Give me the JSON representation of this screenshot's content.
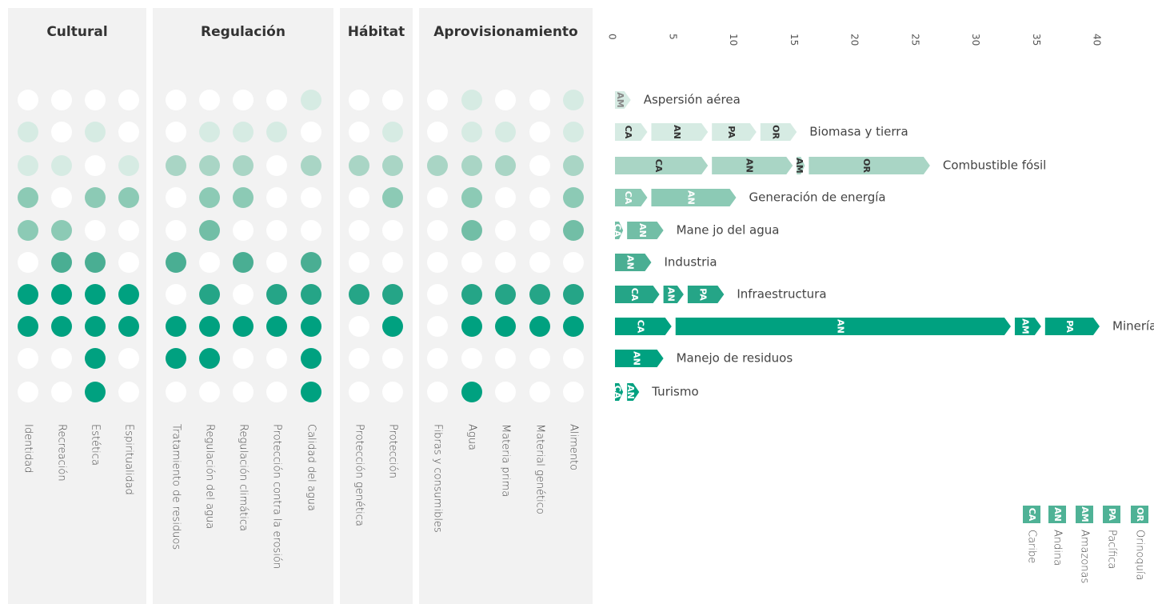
{
  "matrix": {
    "groups": [
      {
        "title": "Cultural",
        "services": [
          "Identidad",
          "Recreación",
          "Estética",
          "Espiritualidad"
        ]
      },
      {
        "title": "Regulación",
        "services": [
          "Tratamiento de residuos",
          "Regulación del agua",
          "Regulación climática",
          "Protección contra la erosión",
          "Calidad del agua"
        ]
      },
      {
        "title": "Hábitat",
        "services": [
          "Protección genética",
          "Protección"
        ]
      },
      {
        "title": "Aprovisionamiento",
        "services": [
          "Fibras y consumibles",
          "Agua",
          "Materia prima",
          "Material genético",
          "Alimento"
        ]
      }
    ],
    "palette": [
      "#ffffff",
      "#d6ebe3",
      "#a9d5c5",
      "#8ccab5",
      "#72bea6",
      "#4aae93",
      "#25a587",
      "#00a180"
    ],
    "levels": [
      [
        0,
        0,
        0,
        0,
        0,
        0,
        0,
        0,
        1,
        0,
        0,
        0,
        1,
        0,
        0,
        1
      ],
      [
        1,
        0,
        1,
        0,
        0,
        1,
        1,
        1,
        0,
        0,
        1,
        0,
        1,
        1,
        0,
        1
      ],
      [
        1,
        1,
        0,
        1,
        2,
        2,
        2,
        0,
        2,
        2,
        2,
        2,
        2,
        2,
        0,
        2
      ],
      [
        3,
        0,
        3,
        3,
        0,
        3,
        3,
        0,
        0,
        0,
        3,
        0,
        3,
        0,
        0,
        3
      ],
      [
        3,
        3,
        0,
        0,
        0,
        4,
        0,
        0,
        0,
        0,
        0,
        0,
        4,
        0,
        0,
        4
      ],
      [
        0,
        5,
        5,
        0,
        5,
        0,
        5,
        0,
        5,
        0,
        0,
        0,
        0,
        0,
        0,
        0
      ],
      [
        7,
        7,
        7,
        7,
        0,
        6,
        0,
        6,
        6,
        6,
        6,
        0,
        6,
        6,
        6,
        6
      ],
      [
        7,
        7,
        7,
        7,
        7,
        7,
        7,
        7,
        7,
        0,
        7,
        0,
        7,
        7,
        7,
        7
      ],
      [
        0,
        0,
        7,
        0,
        7,
        7,
        0,
        0,
        7,
        0,
        0,
        0,
        0,
        0,
        0,
        0
      ],
      [
        0,
        0,
        7,
        0,
        0,
        0,
        0,
        0,
        7,
        0,
        0,
        0,
        7,
        0,
        0,
        0
      ]
    ]
  },
  "chart_data": {
    "type": "stacked-arrow-bar",
    "xlim": [
      0,
      40
    ],
    "xticks": [
      0,
      5,
      10,
      15,
      20,
      25,
      30,
      35,
      40
    ],
    "row_colors": [
      "#d6ebe3",
      "#d6ebe3",
      "#a9d5c5",
      "#8ccab5",
      "#72bea6",
      "#4aae93",
      "#25a587",
      "#00a180",
      "#00a180",
      "#00a180"
    ],
    "drivers": [
      {
        "name": "Aspersión aérea",
        "segments": [
          {
            "code": "AM",
            "value": 1.3
          }
        ]
      },
      {
        "name": "Biomasa y tierra",
        "segments": [
          {
            "code": "CA",
            "value": 3
          },
          {
            "code": "AN",
            "value": 5
          },
          {
            "code": "PA",
            "value": 4
          },
          {
            "code": "OR",
            "value": 3
          }
        ]
      },
      {
        "name": "Combustible fósil",
        "segments": [
          {
            "code": "CA",
            "value": 8
          },
          {
            "code": "AN",
            "value": 7
          },
          {
            "code": "AM",
            "value": 1
          },
          {
            "code": "OR",
            "value": 10
          }
        ]
      },
      {
        "name": "Generación de energía",
        "segments": [
          {
            "code": "CA",
            "value": 3
          },
          {
            "code": "AN",
            "value": 7
          }
        ]
      },
      {
        "name": "Mane jo del agua",
        "segments": [
          {
            "code": "CA",
            "value": 1
          },
          {
            "code": "AN",
            "value": 3
          }
        ]
      },
      {
        "name": "Industria",
        "segments": [
          {
            "code": "AN",
            "value": 3
          }
        ]
      },
      {
        "name": "Infraestructura",
        "segments": [
          {
            "code": "CA",
            "value": 4
          },
          {
            "code": "AN",
            "value": 2
          },
          {
            "code": "PA",
            "value": 3
          }
        ]
      },
      {
        "name": "Minería",
        "segments": [
          {
            "code": "CA",
            "value": 5
          },
          {
            "code": "AN",
            "value": 28
          },
          {
            "code": "AM",
            "value": 2.5
          },
          {
            "code": "PA",
            "value": 4.5
          }
        ]
      },
      {
        "name": "Manejo de residuos",
        "segments": [
          {
            "code": "AN",
            "value": 4
          }
        ]
      },
      {
        "name": "Turismo",
        "segments": [
          {
            "code": "CA",
            "value": 1
          },
          {
            "code": "AN",
            "value": 1
          }
        ]
      }
    ],
    "legend": [
      {
        "code": "CA",
        "name": "Caribe"
      },
      {
        "code": "AN",
        "name": "Andina"
      },
      {
        "code": "AM",
        "name": "Amazonas"
      },
      {
        "code": "PA",
        "name": "Pacífica"
      },
      {
        "code": "OR",
        "name": "Orinoquía"
      }
    ]
  }
}
